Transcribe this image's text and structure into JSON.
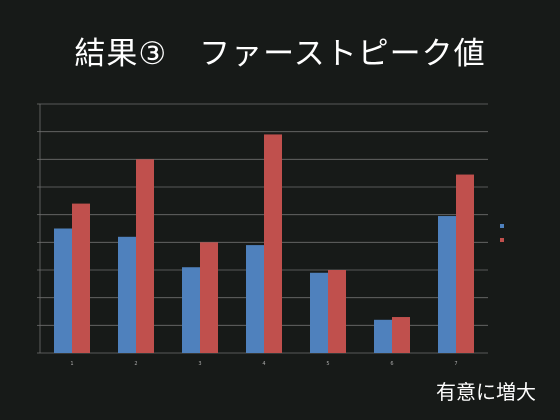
{
  "slide": {
    "title": "結果③　ファーストピーク値",
    "note": "有意に増大"
  },
  "chart_data": {
    "type": "bar",
    "categories": [
      "1",
      "2",
      "3",
      "4",
      "5",
      "6",
      "7"
    ],
    "series": [
      {
        "name": "",
        "color": "#4f81bd",
        "values": [
          4.5,
          4.2,
          3.1,
          3.9,
          2.9,
          1.2,
          4.95
        ]
      },
      {
        "name": "",
        "color": "#c0504d",
        "values": [
          5.4,
          7.0,
          4.0,
          7.9,
          3.0,
          1.3,
          6.45
        ]
      }
    ],
    "ylim": [
      0,
      9
    ],
    "grid": true,
    "legend": "right",
    "title": "",
    "xlabel": "",
    "ylabel": ""
  }
}
